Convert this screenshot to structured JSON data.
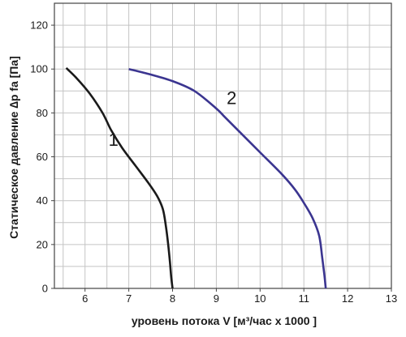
{
  "chart_data": {
    "type": "line",
    "xlabel": "уровень потока  V [м³/час x 1000 ]",
    "ylabel": "Статическое давление  ∆p fa [Па]",
    "xlim": [
      5.3,
      13
    ],
    "ylim": [
      0,
      130
    ],
    "xticks": [
      6,
      7,
      8,
      9,
      10,
      11,
      12,
      13
    ],
    "yticks": [
      0,
      20,
      40,
      60,
      80,
      100,
      120
    ],
    "x_minor_step": 0.5,
    "y_minor_step": 10,
    "grid": true,
    "series": [
      {
        "name": "1",
        "color": "#1a1a1a",
        "label_pos": [
          6.65,
          65
        ],
        "points": [
          [
            5.57,
            100.5
          ],
          [
            5.8,
            96
          ],
          [
            6.1,
            89
          ],
          [
            6.4,
            80
          ],
          [
            6.6,
            72
          ],
          [
            6.85,
            64
          ],
          [
            7.15,
            56
          ],
          [
            7.45,
            48
          ],
          [
            7.65,
            42
          ],
          [
            7.78,
            36
          ],
          [
            7.85,
            28
          ],
          [
            7.9,
            20
          ],
          [
            7.94,
            12
          ],
          [
            7.97,
            5
          ],
          [
            8.0,
            0
          ]
        ]
      },
      {
        "name": "2",
        "color": "#3b3590",
        "label_pos": [
          9.35,
          84
        ],
        "points": [
          [
            7.0,
            100
          ],
          [
            7.5,
            97.5
          ],
          [
            8.0,
            94.5
          ],
          [
            8.5,
            90
          ],
          [
            9.0,
            82
          ],
          [
            9.2,
            78
          ],
          [
            9.5,
            72
          ],
          [
            10.0,
            62
          ],
          [
            10.5,
            52
          ],
          [
            10.8,
            45
          ],
          [
            11.0,
            39
          ],
          [
            11.2,
            32
          ],
          [
            11.35,
            24
          ],
          [
            11.42,
            14
          ],
          [
            11.47,
            6
          ],
          [
            11.5,
            0
          ]
        ]
      }
    ]
  }
}
